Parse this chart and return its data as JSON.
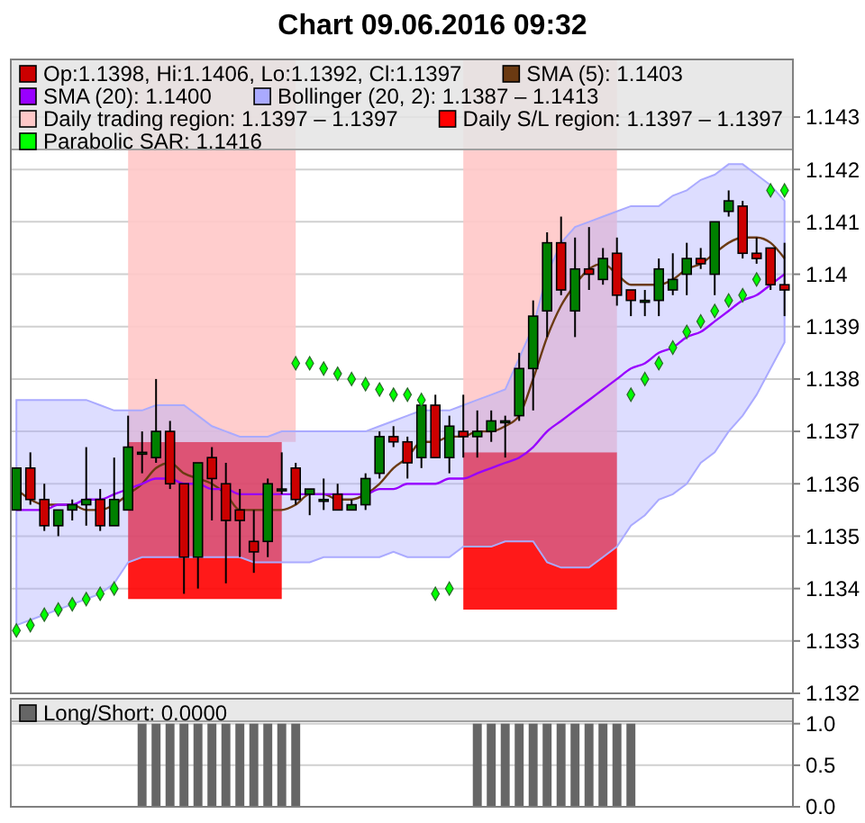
{
  "chart_data": [
    {
      "type": "candlestick",
      "title": "Chart 09.06.2016 09:32",
      "categories": [
        null,
        null,
        null,
        null,
        null,
        null,
        null,
        null,
        null,
        null,
        null,
        null,
        null,
        null,
        null,
        null,
        null,
        null,
        null,
        null,
        null,
        null,
        null,
        null,
        null,
        null,
        null,
        null,
        null,
        null,
        null,
        null,
        null,
        null,
        null,
        null,
        null,
        null,
        null,
        null,
        null,
        null,
        null,
        null,
        null,
        null,
        null,
        null,
        null,
        null,
        null,
        null,
        null,
        null,
        null,
        null
      ],
      "ylim": [
        1.132,
        1.1441
      ],
      "yticks": [
        1.132,
        1.133,
        1.134,
        1.135,
        1.136,
        1.137,
        1.138,
        1.139,
        1.14,
        1.141,
        1.142,
        1.143
      ],
      "grid": "y",
      "legend": "top",
      "series": [
        {
          "name": "Op:1.1398, Hi:1.1406, Lo:1.1392, Cl:1.1397",
          "type": "candlestick",
          "color": "#cc0000",
          "ohlc": [
            [
              1.1355,
              1.1363,
              1.1355,
              1.1363
            ],
            [
              1.1363,
              1.1366,
              1.1356,
              1.1357
            ],
            [
              1.1357,
              1.136,
              1.1351,
              1.1352
            ],
            [
              1.1352,
              1.1355,
              1.135,
              1.1355
            ],
            [
              1.1355,
              1.1357,
              1.1353,
              1.1356
            ],
            [
              1.1356,
              1.1367,
              1.1352,
              1.1357
            ],
            [
              1.1357,
              1.1359,
              1.1351,
              1.1352
            ],
            [
              1.1352,
              1.1365,
              1.1352,
              1.1357
            ],
            [
              1.1355,
              1.1373,
              1.1355,
              1.1367
            ],
            [
              1.1366,
              1.137,
              1.1362,
              1.1366
            ],
            [
              1.1365,
              1.138,
              1.1364,
              1.137
            ],
            [
              1.137,
              1.1372,
              1.1359,
              1.136
            ],
            [
              1.136,
              1.136,
              1.1339,
              1.1346
            ],
            [
              1.1346,
              1.1364,
              1.134,
              1.1364
            ],
            [
              1.1365,
              1.1367,
              1.1353,
              1.1361
            ],
            [
              1.136,
              1.1364,
              1.1341,
              1.1353
            ],
            [
              1.1355,
              1.1359,
              1.1346,
              1.1353
            ],
            [
              1.1349,
              1.1355,
              1.1343,
              1.1347
            ],
            [
              1.1349,
              1.1361,
              1.1346,
              1.136
            ],
            [
              1.1359,
              1.1366,
              1.1358,
              1.1359
            ],
            [
              1.1363,
              1.1364,
              1.1356,
              1.1357
            ],
            [
              1.1358,
              1.1359,
              1.1354,
              1.1359
            ],
            [
              1.1357,
              1.1361,
              1.1355,
              1.1357
            ],
            [
              1.1358,
              1.136,
              1.1355,
              1.1355
            ],
            [
              1.1355,
              1.1357,
              1.1355,
              1.1356
            ],
            [
              1.1356,
              1.1362,
              1.1355,
              1.1361
            ],
            [
              1.1362,
              1.137,
              1.1361,
              1.1369
            ],
            [
              1.1369,
              1.1371,
              1.1367,
              1.1368
            ],
            [
              1.1368,
              1.1369,
              1.1361,
              1.1364
            ],
            [
              1.1365,
              1.1376,
              1.1363,
              1.1375
            ],
            [
              1.1375,
              1.1377,
              1.1365,
              1.1365
            ],
            [
              1.1365,
              1.1373,
              1.1362,
              1.1371
            ],
            [
              1.137,
              1.1377,
              1.1365,
              1.1369
            ],
            [
              1.1369,
              1.1374,
              1.1365,
              1.137
            ],
            [
              1.137,
              1.1374,
              1.1368,
              1.1372
            ],
            [
              1.1372,
              1.1373,
              1.1365,
              1.1372
            ],
            [
              1.1373,
              1.1385,
              1.1372,
              1.1382
            ],
            [
              1.1382,
              1.1395,
              1.1374,
              1.1392
            ],
            [
              1.1393,
              1.1408,
              1.1388,
              1.1406
            ],
            [
              1.1406,
              1.1411,
              1.1396,
              1.1397
            ],
            [
              1.1393,
              1.1407,
              1.1388,
              1.1401
            ],
            [
              1.1401,
              1.1409,
              1.1397,
              1.14
            ],
            [
              1.1399,
              1.1405,
              1.1398,
              1.1403
            ],
            [
              1.1404,
              1.1407,
              1.1394,
              1.1396
            ],
            [
              1.1397,
              1.1397,
              1.1392,
              1.1395
            ],
            [
              1.1395,
              1.1397,
              1.1392,
              1.1395
            ],
            [
              1.1395,
              1.1403,
              1.1392,
              1.1401
            ],
            [
              1.1397,
              1.1404,
              1.1396,
              1.1399
            ],
            [
              1.14,
              1.1406,
              1.1396,
              1.1403
            ],
            [
              1.1403,
              1.1405,
              1.1401,
              1.1402
            ],
            [
              1.14,
              1.141,
              1.1396,
              1.141
            ],
            [
              1.1412,
              1.1416,
              1.1411,
              1.1414
            ],
            [
              1.1413,
              1.1414,
              1.1403,
              1.1404
            ],
            [
              1.1404,
              1.1407,
              1.1402,
              1.1403
            ],
            [
              1.1405,
              1.1405,
              1.1397,
              1.1398
            ],
            [
              1.1398,
              1.1406,
              1.1392,
              1.1397
            ]
          ],
          "colors": [
            "#008000",
            "#cc0000",
            "#cc0000",
            "#008000",
            "#008000",
            "#008000",
            "#cc0000",
            "#008000",
            "#008000",
            "#008000",
            "#008000",
            "#cc0000",
            "#cc0000",
            "#008000",
            "#cc0000",
            "#cc0000",
            "#cc0000",
            "#cc0000",
            "#008000",
            "#008000",
            "#cc0000",
            "#008000",
            "#008000",
            "#cc0000",
            "#008000",
            "#008000",
            "#008000",
            "#cc0000",
            "#cc0000",
            "#008000",
            "#cc0000",
            "#008000",
            "#cc0000",
            "#008000",
            "#008000",
            "#008000",
            "#008000",
            "#008000",
            "#008000",
            "#cc0000",
            "#008000",
            "#cc0000",
            "#008000",
            "#cc0000",
            "#cc0000",
            "#008000",
            "#008000",
            "#008000",
            "#008000",
            "#cc0000",
            "#008000",
            "#008000",
            "#cc0000",
            "#cc0000",
            "#cc0000",
            "#cc0000"
          ]
        },
        {
          "name": "SMA (5): 1.1403",
          "type": "line",
          "color": "#6b3a12",
          "values": [
            1.1359,
            1.1357,
            1.1356,
            1.1356,
            1.1356,
            1.1355,
            1.1355,
            1.1356,
            1.1358,
            1.136,
            1.1363,
            1.1364,
            1.1362,
            1.1361,
            1.136,
            1.1358,
            1.1355,
            1.1355,
            1.1355,
            1.1355,
            1.1356,
            1.1358,
            1.1358,
            1.1357,
            1.1357,
            1.1358,
            1.136,
            1.1363,
            1.1365,
            1.1368,
            1.1368,
            1.1369,
            1.1369,
            1.137,
            1.137,
            1.1371,
            1.1373,
            1.138,
            1.1388,
            1.1394,
            1.1398,
            1.1401,
            1.1402,
            1.14,
            1.1398,
            1.1398,
            1.1398,
            1.1399,
            1.1401,
            1.1402,
            1.1404,
            1.1406,
            1.1407,
            1.1407,
            1.1406,
            1.1403
          ]
        },
        {
          "name": "SMA (20): 1.1400",
          "type": "line",
          "color": "#9900ff",
          "values": [
            1.1355,
            1.1355,
            1.1355,
            1.1356,
            1.1356,
            1.1357,
            1.1357,
            1.1358,
            1.1359,
            1.136,
            1.1361,
            1.1361,
            1.136,
            1.136,
            1.1359,
            1.1359,
            1.1358,
            1.1358,
            1.1358,
            1.1358,
            1.1358,
            1.1358,
            1.1358,
            1.1358,
            1.1358,
            1.1358,
            1.1359,
            1.1359,
            1.136,
            1.136,
            1.136,
            1.1361,
            1.1361,
            1.1362,
            1.1363,
            1.1364,
            1.1365,
            1.1367,
            1.137,
            1.1372,
            1.1374,
            1.1376,
            1.1378,
            1.138,
            1.1382,
            1.1383,
            1.1385,
            1.1386,
            1.1388,
            1.1389,
            1.1391,
            1.1393,
            1.1395,
            1.1396,
            1.1398,
            1.14
          ]
        },
        {
          "name": "Bollinger (20, 2): 1.1387 – 1.1413",
          "type": "area",
          "color": "#aaaaff",
          "values": [
            null,
            null,
            null,
            null,
            null,
            null,
            null,
            null,
            null,
            null,
            null,
            null,
            null,
            null,
            null,
            null,
            null,
            null,
            null,
            null,
            null,
            null,
            null,
            null,
            null,
            null,
            null,
            null,
            null,
            null,
            null,
            null,
            null,
            null,
            null,
            null,
            null,
            null,
            null,
            null,
            null,
            null,
            null,
            null,
            null,
            null,
            null,
            null,
            null,
            null,
            null,
            null,
            null,
            null,
            null,
            null
          ],
          "upper": [
            1.1376,
            1.1376,
            1.1376,
            1.1376,
            1.1376,
            1.1376,
            1.1375,
            1.1374,
            1.1374,
            1.1374,
            1.1375,
            1.1375,
            1.1375,
            1.1373,
            1.1371,
            1.137,
            1.1369,
            1.1369,
            1.1369,
            1.137,
            1.137,
            1.137,
            1.137,
            1.137,
            1.137,
            1.137,
            1.1371,
            1.1372,
            1.1373,
            1.1374,
            1.1374,
            1.1374,
            1.1375,
            1.1376,
            1.1377,
            1.1378,
            1.1384,
            1.139,
            1.14,
            1.1406,
            1.1409,
            1.141,
            1.1411,
            1.1412,
            1.1413,
            1.1413,
            1.1413,
            1.1415,
            1.1416,
            1.1418,
            1.1419,
            1.1421,
            1.1421,
            1.1419,
            1.1417,
            1.1414
          ],
          "lower": [
            1.1333,
            1.1334,
            1.1335,
            1.1336,
            1.1337,
            1.1338,
            1.1339,
            1.1341,
            1.1345,
            1.1346,
            1.1346,
            1.1346,
            1.1346,
            1.1346,
            1.1346,
            1.1346,
            1.1346,
            1.1345,
            1.1345,
            1.1345,
            1.1345,
            1.1345,
            1.1346,
            1.1346,
            1.1346,
            1.1346,
            1.1346,
            1.1347,
            1.1346,
            1.1346,
            1.1346,
            1.1346,
            1.1348,
            1.1348,
            1.1348,
            1.1349,
            1.1349,
            1.1349,
            1.1345,
            1.1344,
            1.1344,
            1.1344,
            1.1346,
            1.1348,
            1.1352,
            1.1354,
            1.1357,
            1.1358,
            1.136,
            1.1364,
            1.1366,
            1.137,
            1.1373,
            1.1377,
            1.1382,
            1.1387
          ]
        },
        {
          "name": "Daily trading region: 1.1397 – 1.1397",
          "type": "area",
          "color": "#ffc8c8",
          "values": [
            null,
            null,
            null,
            null,
            null,
            null,
            null,
            null,
            null,
            null,
            null,
            null,
            null,
            null,
            null,
            null,
            null,
            null,
            null,
            null,
            null,
            null,
            null,
            null,
            null,
            null,
            null,
            null,
            null,
            null,
            null,
            null,
            null,
            null,
            null,
            null,
            null,
            null,
            null,
            null,
            null,
            null,
            null,
            null,
            null,
            null,
            null,
            null,
            null,
            null,
            null,
            null,
            null,
            null,
            null,
            null
          ],
          "upper": [
            null,
            null,
            null,
            null,
            null,
            null,
            null,
            null,
            1.1441,
            1.1441,
            1.1441,
            1.1441,
            1.1441,
            1.1441,
            1.1441,
            1.1441,
            1.1441,
            1.1441,
            1.1441,
            1.1441,
            1.1441,
            null,
            null,
            null,
            null,
            null,
            null,
            null,
            null,
            null,
            null,
            null,
            1.1441,
            1.1441,
            1.1441,
            1.1441,
            1.1441,
            1.1441,
            1.1441,
            1.1441,
            1.1441,
            1.1441,
            1.1441,
            1.1441,
            null,
            null,
            null,
            null,
            null,
            null,
            null,
            null,
            null,
            null,
            null,
            null
          ],
          "lower": [
            null,
            null,
            null,
            null,
            null,
            null,
            null,
            null,
            1.1368,
            1.1368,
            1.1368,
            1.1368,
            1.1368,
            1.1368,
            1.1368,
            1.1368,
            1.1368,
            1.1368,
            1.1368,
            1.1368,
            1.1368,
            null,
            null,
            null,
            null,
            null,
            null,
            null,
            null,
            null,
            null,
            null,
            1.1366,
            1.1366,
            1.1366,
            1.1366,
            1.1366,
            1.1366,
            1.1366,
            1.1366,
            1.1366,
            1.1366,
            1.1366,
            1.1366,
            null,
            null,
            null,
            null,
            null,
            null,
            null,
            null,
            null,
            null,
            null,
            null
          ]
        },
        {
          "name": "Daily S/L region: 1.1397 – 1.1397",
          "type": "area",
          "color": "#ff0000",
          "values": [
            null,
            null,
            null,
            null,
            null,
            null,
            null,
            null,
            null,
            null,
            null,
            null,
            null,
            null,
            null,
            null,
            null,
            null,
            null,
            null,
            null,
            null,
            null,
            null,
            null,
            null,
            null,
            null,
            null,
            null,
            null,
            null,
            null,
            null,
            null,
            null,
            null,
            null,
            null,
            null,
            null,
            null,
            null,
            null,
            null,
            null,
            null,
            null,
            null,
            null,
            null,
            null,
            null,
            null,
            null,
            null
          ],
          "upper": [
            null,
            null,
            null,
            null,
            null,
            null,
            null,
            null,
            1.1368,
            1.1368,
            1.1368,
            1.1368,
            1.1368,
            1.1368,
            1.1368,
            1.1368,
            1.1368,
            1.1368,
            1.1368,
            1.1368,
            null,
            null,
            null,
            null,
            null,
            null,
            null,
            null,
            null,
            null,
            null,
            null,
            1.1366,
            1.1366,
            1.1366,
            1.1366,
            1.1366,
            1.1366,
            1.1366,
            1.1366,
            1.1366,
            1.1366,
            1.1366,
            1.1366,
            null,
            null,
            null,
            null,
            null,
            null,
            null,
            null,
            null,
            null,
            null,
            null
          ],
          "lower": [
            null,
            null,
            null,
            null,
            null,
            null,
            null,
            null,
            1.1338,
            1.1338,
            1.1338,
            1.1338,
            1.1338,
            1.1338,
            1.1338,
            1.1338,
            1.1338,
            1.1338,
            1.1338,
            1.1338,
            null,
            null,
            null,
            null,
            null,
            null,
            null,
            null,
            null,
            null,
            null,
            null,
            1.1336,
            1.1336,
            1.1336,
            1.1336,
            1.1336,
            1.1336,
            1.1336,
            1.1336,
            1.1336,
            1.1336,
            1.1336,
            1.1336,
            null,
            null,
            null,
            null,
            null,
            null,
            null,
            null,
            null,
            null,
            null,
            null
          ]
        },
        {
          "name": "Parabolic SAR: 1.1416",
          "type": "scatter",
          "color": "#00ff00",
          "marker": "diamond",
          "values": [
            1.1332,
            1.1333,
            1.1335,
            1.1336,
            1.1337,
            1.1338,
            1.1339,
            1.134,
            null,
            null,
            null,
            null,
            null,
            null,
            null,
            null,
            null,
            null,
            null,
            null,
            1.1383,
            1.1383,
            1.1382,
            1.1381,
            1.138,
            1.1379,
            1.1378,
            1.1377,
            1.1377,
            1.1376,
            1.1339,
            1.134,
            null,
            null,
            null,
            null,
            null,
            null,
            null,
            null,
            null,
            null,
            null,
            null,
            1.1377,
            1.138,
            1.1383,
            1.1386,
            1.1389,
            1.1391,
            1.1393,
            1.1395,
            1.1396,
            1.1399,
            1.1416,
            1.1416
          ]
        }
      ]
    },
    {
      "type": "bar",
      "categories": [
        null,
        null,
        null,
        null,
        null,
        null,
        null,
        null,
        null,
        null,
        null,
        null,
        null,
        null,
        null,
        null,
        null,
        null,
        null,
        null,
        null,
        null,
        null,
        null,
        null,
        null,
        null,
        null,
        null,
        null,
        null,
        null,
        null,
        null,
        null,
        null,
        null,
        null,
        null,
        null,
        null,
        null,
        null,
        null,
        null,
        null,
        null,
        null,
        null,
        null,
        null,
        null,
        null,
        null,
        null,
        null
      ],
      "ylim": [
        0,
        1.3
      ],
      "yticks": [
        {
          "value": 0,
          "label": "0.0"
        },
        {
          "value": 0.5,
          "label": "0.5"
        },
        {
          "value": 1,
          "label": "1.0"
        }
      ],
      "grid": "y",
      "legend": "top left",
      "series": [
        {
          "name": "Long/Short: 0.0000",
          "color": "#666666",
          "values": [
            0,
            0,
            0,
            0,
            0,
            0,
            0,
            0,
            0,
            1,
            1,
            1,
            1,
            1,
            1,
            1,
            1,
            1,
            1,
            1,
            1,
            0,
            0,
            0,
            0,
            0,
            0,
            0,
            0,
            0,
            0,
            0,
            0,
            1,
            1,
            1,
            1,
            1,
            1,
            1,
            1,
            1,
            1,
            1,
            1,
            0,
            0,
            0,
            0,
            0,
            0,
            0,
            0,
            0,
            0,
            0
          ]
        }
      ]
    }
  ]
}
